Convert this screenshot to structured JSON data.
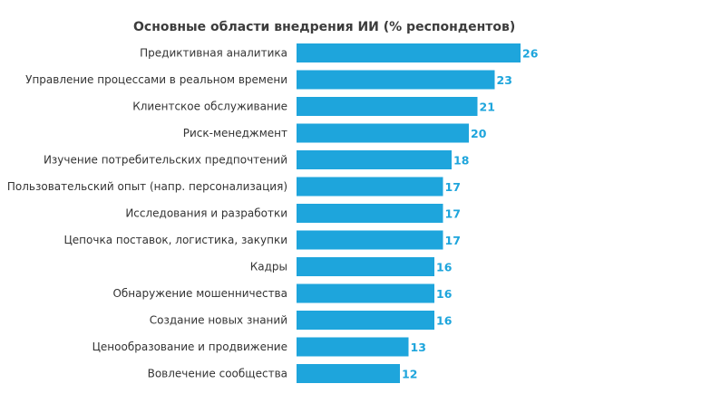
{
  "chart_data": {
    "type": "bar",
    "orientation": "horizontal",
    "title": "Основные области внедрения ИИ (% респондентов)",
    "categories": [
      "Предиктивная аналитика",
      "Управление процессами в реальном времени",
      "Клиентское обслуживание",
      "Риск-менеджмент",
      "Изучение потребительских предпочтений",
      "Пользовательский опыт (напр. персонализация)",
      "Исследования и разработки",
      "Цепочка поставок, логистика, закупки",
      "Кадры",
      "Обнаружение мошенничества",
      "Создание новых знаний",
      "Ценообразование и продвижение",
      "Вовлечение сообщества"
    ],
    "values": [
      26,
      23,
      21,
      20,
      18,
      17,
      17,
      17,
      16,
      16,
      16,
      13,
      12
    ],
    "xlim": [
      0,
      26
    ],
    "grid": false,
    "legend": "none",
    "bar_color": "#1ea5dc",
    "label_color": "#1ea5dc"
  }
}
